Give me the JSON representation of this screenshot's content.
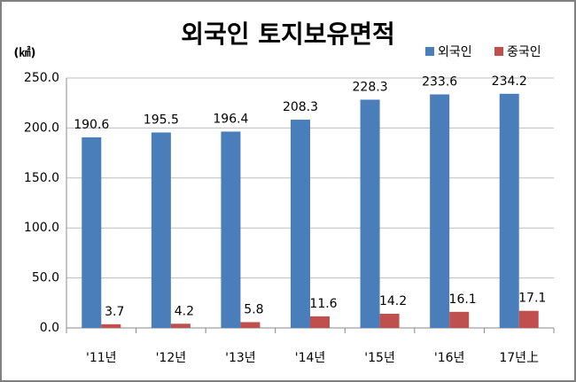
{
  "chart_data": {
    "type": "bar",
    "title": "외국인 토지보유면적",
    "y_label": "(㎢)",
    "categories": [
      "'11년",
      "'12년",
      "'13년",
      "'14년",
      "'15년",
      "'16년",
      "17년上"
    ],
    "series": [
      {
        "name": "외국인",
        "color": "#4a7ebb",
        "values": [
          190.6,
          195.5,
          196.4,
          208.3,
          228.3,
          233.6,
          234.2
        ]
      },
      {
        "name": "중국인",
        "color": "#c0504d",
        "values": [
          3.7,
          4.2,
          5.8,
          11.6,
          14.2,
          16.1,
          17.1
        ]
      }
    ],
    "ylim": [
      0,
      250
    ],
    "yticks": [
      {
        "value": 0,
        "label": "0.0"
      },
      {
        "value": 50,
        "label": "50.0"
      },
      {
        "value": 100,
        "label": "100.0"
      },
      {
        "value": 150,
        "label": "150.0"
      },
      {
        "value": 200,
        "label": "200.0"
      },
      {
        "value": 250,
        "label": "250.0"
      }
    ],
    "grid": true,
    "legend": "top-right"
  }
}
